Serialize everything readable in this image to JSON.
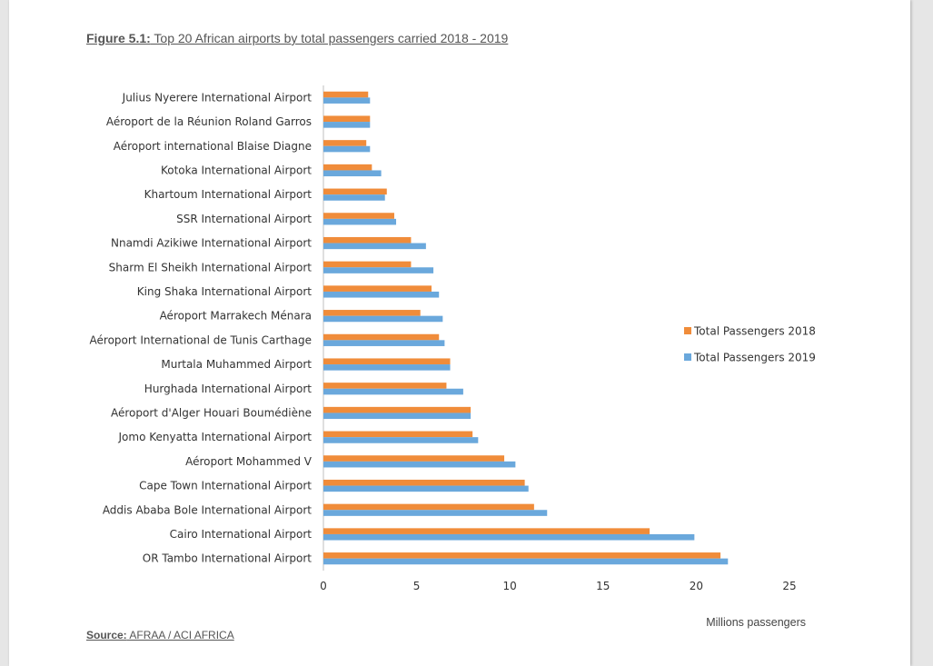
{
  "caption": {
    "label": "Figure 5.1:",
    "text": " Top 20 African airports by total passengers carried 2018 - 2019"
  },
  "source": {
    "label": "Source:",
    "text": " AFRAA / ACI AFRICA"
  },
  "chart_data": {
    "type": "bar",
    "orientation": "horizontal",
    "categories": [
      "Julius Nyerere International Airport",
      "Aéroport de la Réunion Roland Garros",
      "Aéroport international Blaise Diagne",
      "Kotoka International Airport",
      "Khartoum International Airport",
      "SSR International Airport",
      "Nnamdi Azikiwe International Airport",
      "Sharm El Sheikh International Airport",
      "King Shaka International Airport",
      "Aéroport Marrakech Ménara",
      "Aéroport International de Tunis Carthage",
      "Murtala Muhammed Airport",
      "Hurghada International Airport",
      "Aéroport d'Alger Houari Boumédiène",
      "Jomo Kenyatta International Airport",
      "Aéroport Mohammed V",
      "Cape Town International Airport",
      "Addis Ababa Bole International Airport",
      "Cairo International Airport",
      "OR Tambo International Airport"
    ],
    "series": [
      {
        "name": "Total Passengers 2018",
        "color": "#f08c3a",
        "values": [
          2.4,
          2.5,
          2.3,
          2.6,
          3.4,
          3.8,
          4.7,
          4.7,
          5.8,
          5.2,
          6.2,
          6.8,
          6.6,
          7.9,
          8.0,
          9.7,
          10.8,
          11.3,
          17.5,
          21.3
        ]
      },
      {
        "name": "Total Passengers 2019",
        "color": "#6aa8dc",
        "values": [
          2.5,
          2.5,
          2.5,
          3.1,
          3.3,
          3.9,
          5.5,
          5.9,
          6.2,
          6.4,
          6.5,
          6.8,
          7.5,
          7.9,
          8.3,
          10.3,
          11.0,
          12.0,
          19.9,
          21.7
        ]
      }
    ],
    "xlim": [
      0,
      25
    ],
    "xticks": [
      0,
      5,
      10,
      15,
      20,
      25
    ],
    "xlabel": "Millions passengers",
    "grid": false,
    "legend": "right"
  }
}
